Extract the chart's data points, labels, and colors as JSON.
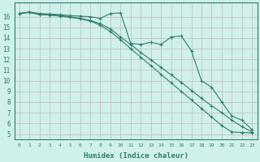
{
  "xlabel": "Humidex (Indice chaleur)",
  "bg_color": "#d0f0ea",
  "line_color": "#2e7d6e",
  "grid_color": "#c0b8c0",
  "xlim": [
    -0.5,
    23.5
  ],
  "ylim": [
    4.5,
    17.3
  ],
  "xticks": [
    0,
    1,
    2,
    3,
    4,
    5,
    6,
    7,
    8,
    9,
    10,
    11,
    12,
    13,
    14,
    15,
    16,
    17,
    18,
    19,
    20,
    21,
    22,
    23
  ],
  "yticks": [
    5,
    6,
    7,
    8,
    9,
    10,
    11,
    12,
    13,
    14,
    15,
    16
  ],
  "series1_x": [
    0,
    1,
    2,
    3,
    4,
    5,
    6,
    7,
    8,
    9,
    10,
    11,
    12,
    13,
    14,
    15,
    16,
    17,
    18,
    19,
    20,
    21,
    22,
    23
  ],
  "series1_y": [
    16.3,
    16.45,
    16.3,
    16.25,
    16.2,
    16.1,
    16.05,
    16.0,
    15.85,
    16.3,
    16.35,
    13.5,
    13.4,
    13.6,
    13.4,
    14.1,
    14.2,
    12.8,
    10.0,
    9.4,
    8.0,
    6.7,
    6.3,
    5.4
  ],
  "series2_x": [
    0,
    1,
    2,
    3,
    4,
    5,
    6,
    7,
    8,
    9,
    10,
    11,
    12,
    13,
    14,
    15,
    16,
    17,
    18,
    19,
    20,
    21,
    22,
    23
  ],
  "series2_y": [
    16.3,
    16.4,
    16.2,
    16.2,
    16.1,
    16.0,
    15.85,
    15.65,
    15.35,
    14.85,
    14.1,
    13.4,
    12.65,
    11.95,
    11.25,
    10.55,
    9.85,
    9.1,
    8.35,
    7.65,
    7.0,
    6.3,
    5.7,
    5.2
  ],
  "series3_x": [
    0,
    1,
    2,
    3,
    4,
    5,
    6,
    7,
    8,
    9,
    10,
    11,
    12,
    13,
    14,
    15,
    16,
    17,
    18,
    19,
    20,
    21,
    22,
    23
  ],
  "series3_y": [
    16.3,
    16.4,
    16.2,
    16.15,
    16.05,
    15.95,
    15.8,
    15.6,
    15.2,
    14.6,
    13.85,
    13.0,
    12.2,
    11.4,
    10.6,
    9.8,
    9.0,
    8.2,
    7.4,
    6.6,
    5.8,
    5.2,
    5.15,
    5.1
  ]
}
